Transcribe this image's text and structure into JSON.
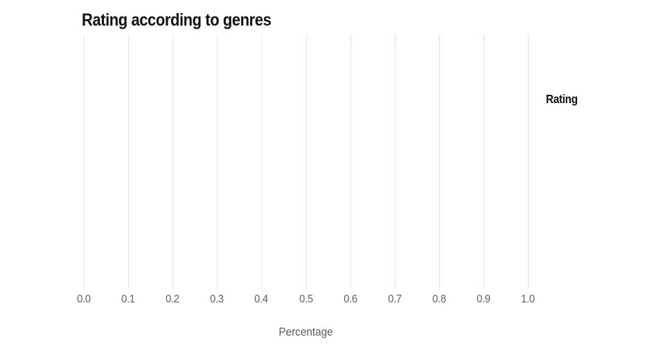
{
  "chart_data": {
    "type": "bar",
    "orientation": "horizontal",
    "title": "Rating according to genres",
    "xlabel": "Percentage",
    "ylabel": "",
    "legend": {
      "title": "Rating",
      "position": "right",
      "entries": []
    },
    "x_ticks": [
      "0.0",
      "0.1",
      "0.2",
      "0.3",
      "0.4",
      "0.5",
      "0.6",
      "0.7",
      "0.8",
      "0.9",
      "1.0"
    ],
    "xlim": [
      0.0,
      1.0
    ],
    "categories": [],
    "series": [],
    "grid": {
      "vertical": true,
      "horizontal": false
    },
    "colors": {
      "background": "#ffffff",
      "gridline": "#f3dede",
      "tick_label": "#5d5d5d",
      "axis_label": "#5d5d5d",
      "title": "#111111",
      "legend_title": "#111111"
    }
  }
}
